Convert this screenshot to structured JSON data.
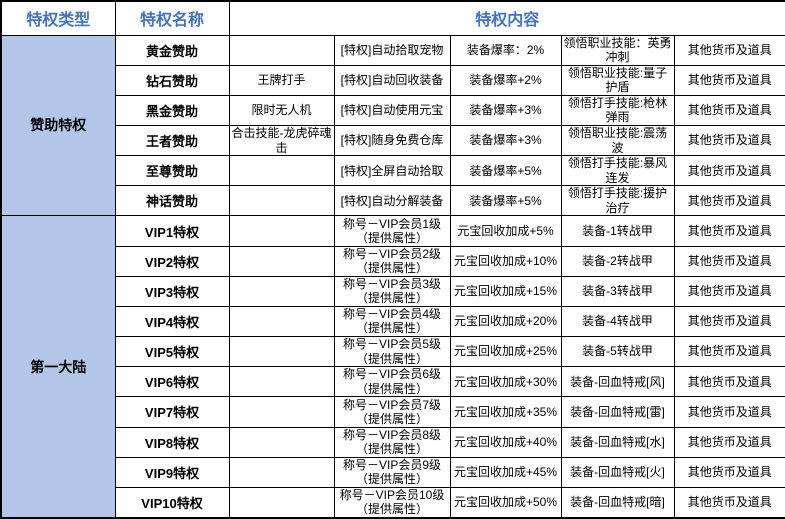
{
  "header": {
    "col_type": "特权类型",
    "col_name": "特权名称",
    "col_content": "特权内容"
  },
  "colors": {
    "header_text": "#4472C4",
    "group_bg": "#B4C6E7",
    "border": "#000000"
  },
  "groups": [
    {
      "label": "赞助特权",
      "rows": [
        {
          "name": "黄金赞助",
          "cells": [
            "",
            "[特权]自动拾取宠物",
            "装备爆率：2%",
            "领悟职业技能：英勇冲刺",
            "其他货币及道具"
          ]
        },
        {
          "name": "钻石赞助",
          "cells": [
            "王牌打手",
            "[特权]自动回收装备",
            "装备爆率+2%",
            "领悟职业技能:量子护盾",
            "其他货币及道具"
          ]
        },
        {
          "name": "黑金赞助",
          "cells": [
            "限时无人机",
            "[特权]自动使用元宝",
            "装备爆率+3%",
            "领悟打手技能:枪林弹雨",
            "其他货币及道具"
          ]
        },
        {
          "name": "王者赞助",
          "cells": [
            "合击技能-龙虎碎魂击",
            "[特权]随身免费仓库",
            "装备爆率+3%",
            "领悟职业技能:震荡波",
            "其他货币及道具"
          ]
        },
        {
          "name": "至尊赞助",
          "cells": [
            "",
            "[特权]全屏自动拾取",
            "装备爆率+5%",
            "领悟打手技能:暴风连发",
            "其他货币及道具"
          ]
        },
        {
          "name": "神话赞助",
          "cells": [
            "",
            "[特权]自动分解装备",
            "装备爆率+5%",
            "领悟打手技能:援护治疗",
            "其他货币及道具"
          ]
        }
      ]
    },
    {
      "label": "第一大陆",
      "rows": [
        {
          "name": "VIP1特权",
          "cells": [
            "",
            "称号－VIP会员1级（提供属性）",
            "元宝回收加成+5%",
            "装备-1转战甲",
            "其他货币及道具"
          ]
        },
        {
          "name": "VIP2特权",
          "cells": [
            "",
            "称号－VIP会员2级（提供属性）",
            "元宝回收加成+10%",
            "装备-2转战甲",
            "其他货币及道具"
          ]
        },
        {
          "name": "VIP3特权",
          "cells": [
            "",
            "称号－VIP会员3级（提供属性）",
            "元宝回收加成+15%",
            "装备-3转战甲",
            "其他货币及道具"
          ]
        },
        {
          "name": "VIP4特权",
          "cells": [
            "",
            "称号－VIP会员4级（提供属性）",
            "元宝回收加成+20%",
            "装备-4转战甲",
            "其他货币及道具"
          ]
        },
        {
          "name": "VIP5特权",
          "cells": [
            "",
            "称号－VIP会员5级（提供属性）",
            "元宝回收加成+25%",
            "装备-5转战甲",
            "其他货币及道具"
          ]
        },
        {
          "name": "VIP6特权",
          "cells": [
            "",
            "称号－VIP会员6级（提供属性）",
            "元宝回收加成+30%",
            "装备-回血特戒[风]",
            "其他货币及道具"
          ]
        },
        {
          "name": "VIP7特权",
          "cells": [
            "",
            "称号－VIP会员7级（提供属性）",
            "元宝回收加成+35%",
            "装备-回血特戒[雷]",
            "其他货币及道具"
          ]
        },
        {
          "name": "VIP8特权",
          "cells": [
            "",
            "称号－VIP会员8级（提供属性）",
            "元宝回收加成+40%",
            "装备-回血特戒[水]",
            "其他货币及道具"
          ]
        },
        {
          "name": "VIP9特权",
          "cells": [
            "",
            "称号－VIP会员9级（提供属性）",
            "元宝回收加成+45%",
            "装备-回血特戒[火]",
            "其他货币及道具"
          ]
        },
        {
          "name": "VIP10特权",
          "cells": [
            "",
            "称号－VIP会员10级（提供属性）",
            "元宝回收加成+50%",
            "装备-回血特戒[暗]",
            "其他货币及道具"
          ]
        }
      ]
    }
  ]
}
